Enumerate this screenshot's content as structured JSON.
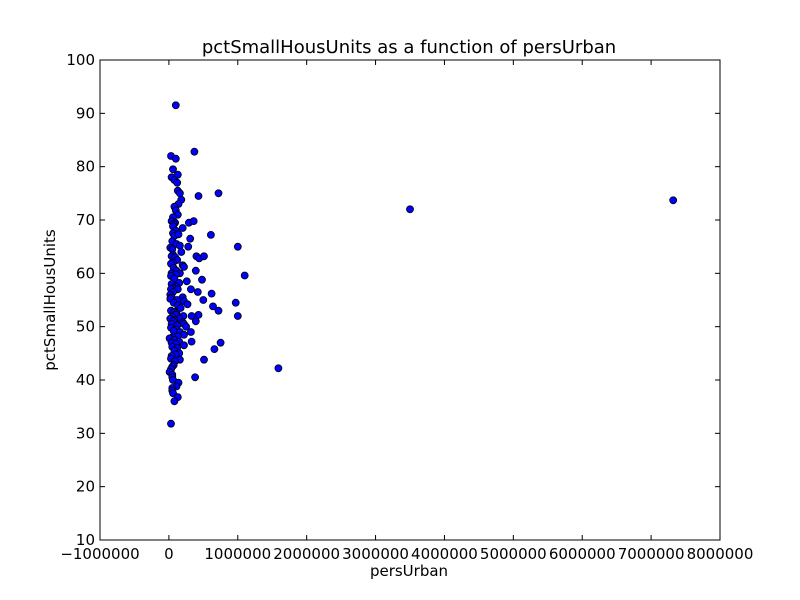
{
  "chart_data": {
    "type": "scatter",
    "title": "pctSmallHousUnits as a function of persUrban",
    "xlabel": "persUrban",
    "ylabel": "pctSmallHousUnits",
    "xlim": [
      -1000000,
      8000000
    ],
    "ylim": [
      10,
      100
    ],
    "x_ticks": [
      -1000000,
      0,
      1000000,
      2000000,
      3000000,
      4000000,
      5000000,
      6000000,
      7000000,
      8000000
    ],
    "x_tick_labels": [
      "−1000000",
      "0",
      "1000000",
      "2000000",
      "3000000",
      "4000000",
      "5000000",
      "6000000",
      "7000000",
      "8000000"
    ],
    "y_ticks": [
      10,
      20,
      30,
      40,
      50,
      60,
      70,
      80,
      90,
      100
    ],
    "y_tick_labels": [
      "10",
      "20",
      "30",
      "40",
      "50",
      "60",
      "70",
      "80",
      "90",
      "100"
    ],
    "grid": false,
    "marker_color": "#0000ff",
    "marker_edge_color": "#000000",
    "x": [
      100000,
      370000,
      30000,
      100000,
      60000,
      130000,
      40000,
      80000,
      120000,
      130000,
      160000,
      720000,
      430000,
      180000,
      140000,
      80000,
      100000,
      130000,
      60000,
      40000,
      90000,
      70000,
      60000,
      290000,
      360000,
      200000,
      100000,
      60000,
      80000,
      140000,
      610000,
      310000,
      50000,
      110000,
      160000,
      280000,
      20000,
      50000,
      180000,
      60000,
      40000,
      90000,
      400000,
      1000000,
      120000,
      60000,
      30000,
      200000,
      440000,
      510000,
      70000,
      110000,
      220000,
      390000,
      160000,
      40000,
      100000,
      1100000,
      30000,
      80000,
      480000,
      260000,
      150000,
      40000,
      100000,
      70000,
      30000,
      130000,
      320000,
      620000,
      420000,
      60000,
      20000,
      40000,
      200000,
      970000,
      20000,
      120000,
      500000,
      220000,
      70000,
      270000,
      130000,
      640000,
      170000,
      720000,
      30000,
      80000,
      110000,
      100000,
      1000000,
      210000,
      430000,
      330000,
      50000,
      20000,
      150000,
      80000,
      60000,
      390000,
      200000,
      220000,
      40000,
      120000,
      250000,
      30000,
      100000,
      70000,
      320000,
      160000,
      220000,
      750000,
      130000,
      50000,
      10000,
      80000,
      660000,
      150000,
      40000,
      330000,
      100000,
      510000,
      220000,
      1590000,
      50000,
      120000,
      80000,
      150000,
      100000,
      40000,
      30000,
      160000,
      90000,
      70000,
      50000,
      30000,
      10000,
      50000,
      50000,
      380000,
      60000,
      140000,
      110000,
      50000,
      50000,
      60000,
      130000,
      80000,
      30000,
      3500000,
      7320000
    ],
    "y": [
      91.5,
      82.8,
      82,
      81.5,
      79.5,
      78.5,
      78,
      77.5,
      77,
      75.5,
      75,
      75,
      74.5,
      73.8,
      73,
      72.5,
      71.8,
      71,
      70.5,
      69.8,
      69.5,
      69.2,
      68.8,
      69.5,
      69.8,
      68.5,
      68,
      67.5,
      67,
      67.3,
      67.2,
      66.5,
      66,
      65.5,
      65.2,
      65,
      64.8,
      64.5,
      64,
      63.5,
      63.2,
      63,
      63.2,
      65,
      62.5,
      62,
      61.8,
      61.5,
      62.8,
      63.2,
      61,
      60.5,
      61.2,
      60.5,
      60,
      60,
      59.8,
      59.6,
      59.5,
      59,
      58.8,
      58.5,
      58.2,
      58,
      57.5,
      57.2,
      57,
      57,
      57,
      56.2,
      56.5,
      56.5,
      56,
      55.5,
      55.5,
      54.5,
      55.2,
      55,
      55,
      54.8,
      54.5,
      54.2,
      54,
      53.8,
      53.5,
      53,
      53,
      52.8,
      52.5,
      52.2,
      52,
      52,
      52.2,
      52,
      51.8,
      51.5,
      51.5,
      51.2,
      51,
      51,
      50.8,
      50.5,
      50.5,
      50.2,
      50,
      49.8,
      49.5,
      49.2,
      49,
      49,
      48.5,
      47,
      48.2,
      48,
      47.8,
      47.5,
      45.8,
      47.2,
      47,
      47.2,
      46.8,
      43.8,
      46.5,
      42.2,
      46.2,
      46,
      45.5,
      45,
      44.8,
      44.5,
      44,
      43.8,
      43.5,
      42.8,
      42.5,
      42,
      41.5,
      41,
      40.5,
      40.5,
      40,
      39.5,
      38.8,
      38.5,
      38,
      37.5,
      36.8,
      36,
      31.8,
      72,
      73.7
    ]
  }
}
